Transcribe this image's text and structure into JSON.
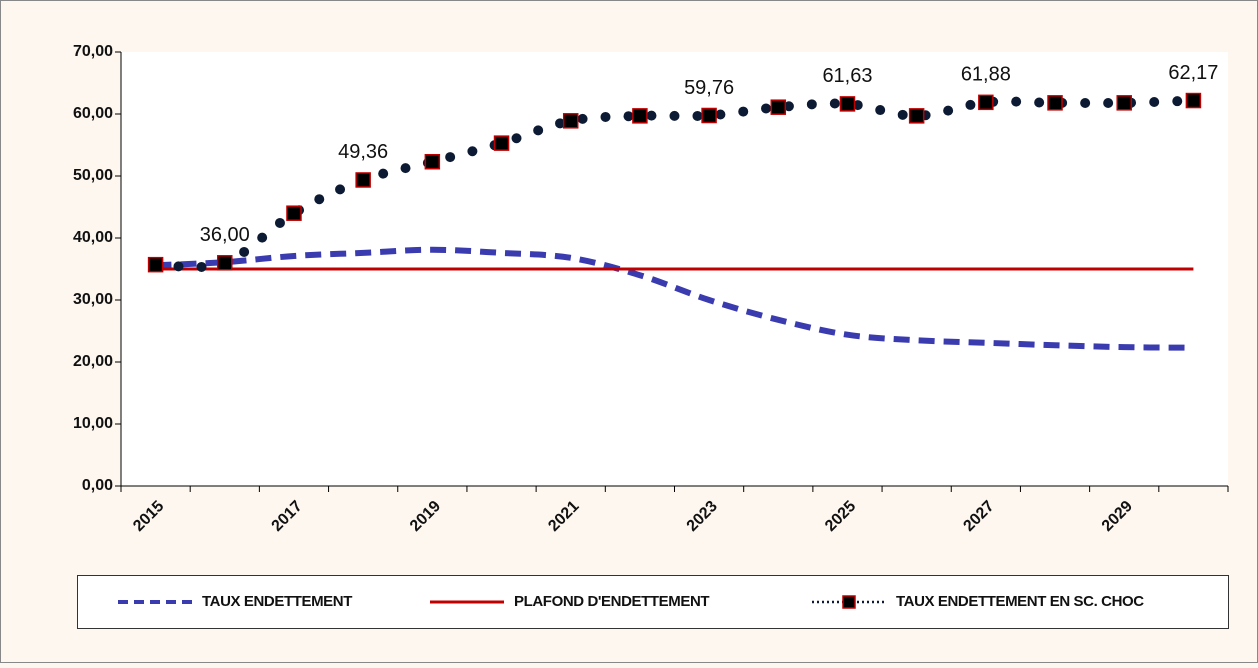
{
  "chart_data": {
    "type": "line",
    "categories": [
      "2015",
      null,
      "2017",
      null,
      "2019",
      null,
      "2021",
      null,
      "2023",
      null,
      "2025",
      null,
      "2027",
      null,
      "2029",
      null
    ],
    "ylim": [
      0,
      70
    ],
    "yticks": [
      {
        "value": 0,
        "label": "0,00"
      },
      {
        "value": 10,
        "label": "10,00"
      },
      {
        "value": 20,
        "label": "20,00"
      },
      {
        "value": 30,
        "label": "30,00"
      },
      {
        "value": 40,
        "label": "40,00"
      },
      {
        "value": 50,
        "label": "50,00"
      },
      {
        "value": 60,
        "label": "60,00"
      },
      {
        "value": 70,
        "label": "70,00"
      }
    ],
    "series": [
      {
        "name": "TAUX ENDETTEMENT",
        "color": "#3b3bb0",
        "style": "dashed",
        "values": [
          35.6,
          36.1,
          37.1,
          37.6,
          38.1,
          37.6,
          36.8,
          34.0,
          30.0,
          26.8,
          24.4,
          23.5,
          23.1,
          22.7,
          22.4,
          22.3
        ]
      },
      {
        "name": "PLAFOND D'ENDETTEMENT",
        "color": "#c00000",
        "style": "solid",
        "values": [
          35,
          35,
          35,
          35,
          35,
          35,
          35,
          35,
          35,
          35,
          35,
          35,
          35,
          35,
          35,
          35
        ]
      },
      {
        "name": "TAUX ENDETTEMENT EN SC. CHOC",
        "color": "#0d1a33",
        "style": "dotted",
        "marker": "square",
        "values": [
          35.7,
          36.0,
          44.0,
          49.36,
          52.3,
          55.3,
          58.9,
          59.7,
          59.76,
          61.1,
          61.63,
          59.7,
          61.88,
          61.8,
          61.8,
          62.17
        ],
        "value_labels": [
          null,
          "36,00",
          null,
          "49,36",
          null,
          null,
          null,
          null,
          "59,76",
          null,
          "61,63",
          null,
          "61,88",
          null,
          null,
          "62,17"
        ]
      }
    ]
  }
}
